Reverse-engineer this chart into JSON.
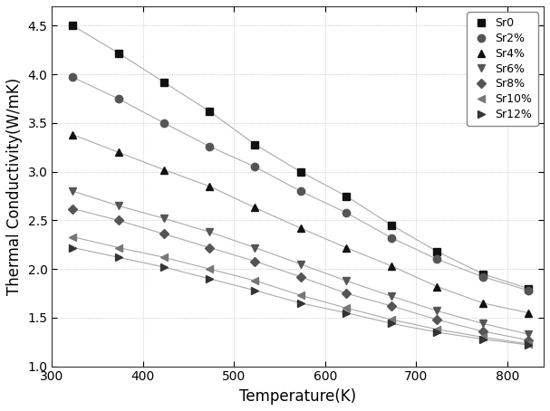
{
  "title": "",
  "xlabel": "Temperature(K)",
  "ylabel": "Thermal Conductivity(W/mK)",
  "xlim": [
    300,
    840
  ],
  "ylim": [
    1.0,
    4.7
  ],
  "xticks": [
    300,
    400,
    500,
    600,
    700,
    800
  ],
  "yticks": [
    1.0,
    1.5,
    2.0,
    2.5,
    3.0,
    3.5,
    4.0,
    4.5
  ],
  "series": [
    {
      "label": "Sr0",
      "marker": "s",
      "color": "#111111",
      "markersize": 6,
      "x": [
        323,
        373,
        423,
        473,
        523,
        573,
        623,
        673,
        723,
        773,
        823
      ],
      "y": [
        4.5,
        4.22,
        3.92,
        3.62,
        3.28,
        3.0,
        2.75,
        2.45,
        2.18,
        1.95,
        1.8
      ]
    },
    {
      "label": "Sr2%",
      "marker": "o",
      "color": "#555555",
      "markersize": 6,
      "x": [
        323,
        373,
        423,
        473,
        523,
        573,
        623,
        673,
        723,
        773,
        823
      ],
      "y": [
        3.97,
        3.75,
        3.5,
        3.26,
        3.05,
        2.8,
        2.58,
        2.32,
        2.1,
        1.92,
        1.78
      ]
    },
    {
      "label": "Sr4%",
      "marker": "^",
      "color": "#111111",
      "markersize": 6,
      "x": [
        323,
        373,
        423,
        473,
        523,
        573,
        623,
        673,
        723,
        773,
        823
      ],
      "y": [
        3.38,
        3.2,
        3.02,
        2.85,
        2.63,
        2.42,
        2.22,
        2.03,
        1.82,
        1.65,
        1.55
      ]
    },
    {
      "label": "Sr6%",
      "marker": "v",
      "color": "#555555",
      "markersize": 6,
      "x": [
        323,
        373,
        423,
        473,
        523,
        573,
        623,
        673,
        723,
        773,
        823
      ],
      "y": [
        2.8,
        2.65,
        2.52,
        2.38,
        2.22,
        2.05,
        1.88,
        1.72,
        1.57,
        1.44,
        1.33
      ]
    },
    {
      "label": "Sr8%",
      "marker": "D",
      "color": "#555555",
      "markersize": 5,
      "x": [
        323,
        373,
        423,
        473,
        523,
        573,
        623,
        673,
        723,
        773,
        823
      ],
      "y": [
        2.62,
        2.5,
        2.36,
        2.22,
        2.08,
        1.92,
        1.75,
        1.62,
        1.48,
        1.36,
        1.27
      ]
    },
    {
      "label": "Sr10%",
      "marker": "<",
      "color": "#777777",
      "markersize": 6,
      "x": [
        323,
        373,
        423,
        473,
        523,
        573,
        623,
        673,
        723,
        773,
        823
      ],
      "y": [
        2.33,
        2.22,
        2.12,
        2.0,
        1.88,
        1.73,
        1.6,
        1.48,
        1.38,
        1.3,
        1.23
      ]
    },
    {
      "label": "Sr12%",
      "marker": ">",
      "color": "#333333",
      "markersize": 6,
      "x": [
        323,
        373,
        423,
        473,
        523,
        573,
        623,
        673,
        723,
        773,
        823
      ],
      "y": [
        2.22,
        2.12,
        2.02,
        1.9,
        1.78,
        1.65,
        1.55,
        1.44,
        1.35,
        1.28,
        1.22
      ]
    }
  ],
  "line_color": "#aaaaaa",
  "line_style": "-",
  "line_width": 0.8,
  "background_color": "#ffffff",
  "grid": true,
  "grid_color": "#bbbbbb",
  "grid_linestyle": ":",
  "legend_loc": "upper right",
  "legend_fontsize": 9,
  "axis_fontsize": 12,
  "tick_fontsize": 10
}
